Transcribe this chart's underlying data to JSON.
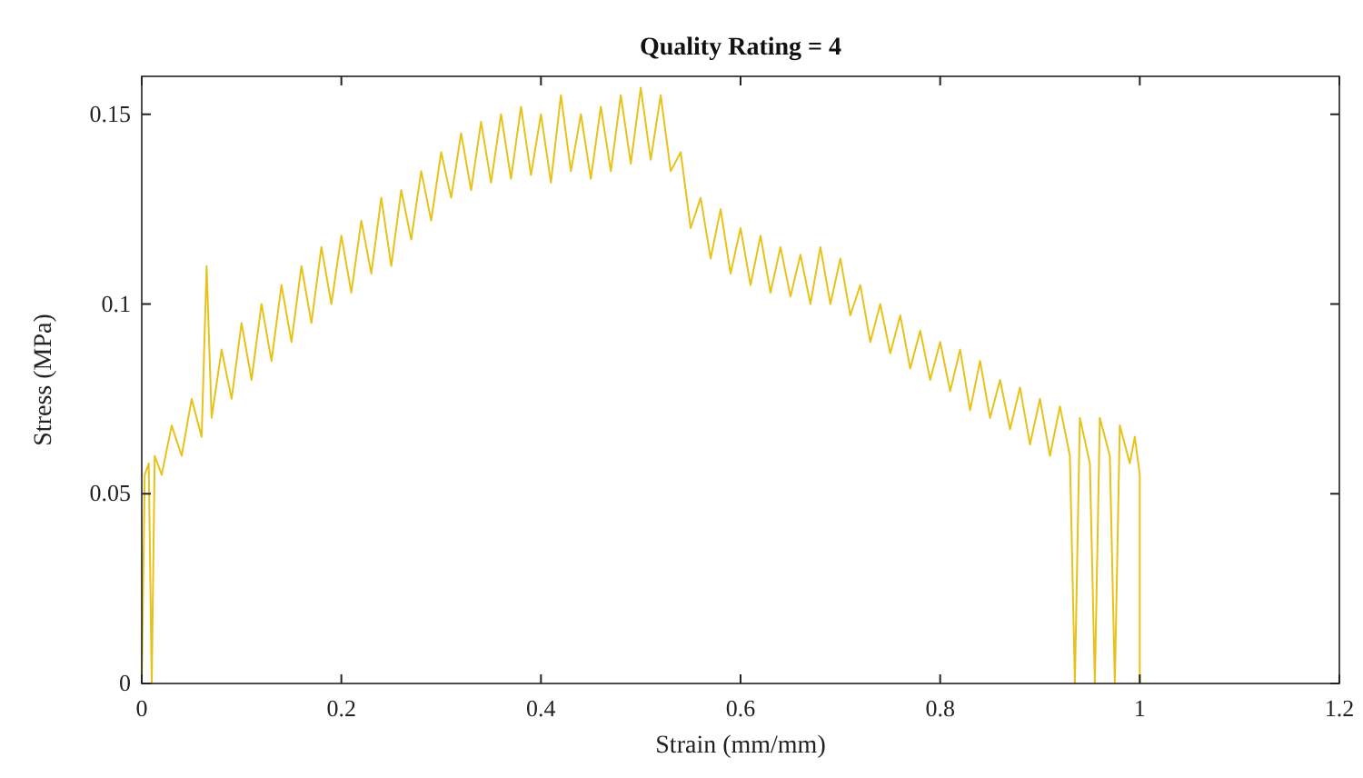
{
  "chart_data": {
    "type": "line",
    "title": "Quality Rating = 4",
    "xlabel": "Strain (mm/mm)",
    "ylabel": "Stress (MPa)",
    "xlim": [
      0,
      1.2
    ],
    "xticks": [
      0,
      0.2,
      0.4,
      0.6,
      0.8,
      1,
      1.2
    ],
    "ylim": [
      0,
      0.16
    ],
    "yticks": [
      0,
      0.05,
      0.1,
      0.15
    ],
    "grid": false,
    "marker": "none",
    "line_style": "solid",
    "series": [
      {
        "color": "#e8c21a",
        "x": [
          0,
          0.003,
          0.007,
          0.01,
          0.013,
          0.02,
          0.03,
          0.04,
          0.05,
          0.06,
          0.065,
          0.07,
          0.08,
          0.09,
          0.1,
          0.11,
          0.12,
          0.13,
          0.14,
          0.15,
          0.16,
          0.17,
          0.18,
          0.19,
          0.2,
          0.21,
          0.22,
          0.23,
          0.24,
          0.25,
          0.26,
          0.27,
          0.28,
          0.29,
          0.3,
          0.31,
          0.32,
          0.33,
          0.34,
          0.35,
          0.36,
          0.37,
          0.38,
          0.39,
          0.4,
          0.41,
          0.42,
          0.43,
          0.44,
          0.45,
          0.46,
          0.47,
          0.48,
          0.49,
          0.5,
          0.51,
          0.52,
          0.53,
          0.54,
          0.55,
          0.56,
          0.57,
          0.58,
          0.59,
          0.6,
          0.61,
          0.62,
          0.63,
          0.64,
          0.65,
          0.66,
          0.67,
          0.68,
          0.69,
          0.7,
          0.71,
          0.72,
          0.73,
          0.74,
          0.75,
          0.76,
          0.77,
          0.78,
          0.79,
          0.8,
          0.81,
          0.82,
          0.83,
          0.84,
          0.85,
          0.86,
          0.87,
          0.88,
          0.89,
          0.9,
          0.91,
          0.92,
          0.93,
          0.935,
          0.94,
          0.95,
          0.955,
          0.96,
          0.97,
          0.975,
          0.98,
          0.99,
          0.995,
          1,
          1
        ],
        "values": [
          0,
          0.055,
          0.058,
          0,
          0.06,
          0.055,
          0.068,
          0.06,
          0.075,
          0.065,
          0.11,
          0.07,
          0.088,
          0.075,
          0.095,
          0.08,
          0.1,
          0.085,
          0.105,
          0.09,
          0.11,
          0.095,
          0.115,
          0.1,
          0.118,
          0.103,
          0.122,
          0.108,
          0.128,
          0.11,
          0.13,
          0.117,
          0.135,
          0.122,
          0.14,
          0.128,
          0.145,
          0.13,
          0.148,
          0.132,
          0.15,
          0.133,
          0.152,
          0.134,
          0.15,
          0.132,
          0.155,
          0.135,
          0.15,
          0.133,
          0.152,
          0.135,
          0.155,
          0.137,
          0.157,
          0.138,
          0.155,
          0.135,
          0.14,
          0.12,
          0.128,
          0.112,
          0.125,
          0.108,
          0.12,
          0.105,
          0.118,
          0.103,
          0.115,
          0.102,
          0.113,
          0.1,
          0.115,
          0.1,
          0.112,
          0.097,
          0.105,
          0.09,
          0.1,
          0.087,
          0.097,
          0.083,
          0.093,
          0.08,
          0.09,
          0.077,
          0.088,
          0.072,
          0.085,
          0.07,
          0.08,
          0.067,
          0.078,
          0.063,
          0.075,
          0.06,
          0.073,
          0.06,
          0,
          0.07,
          0.058,
          0,
          0.07,
          0.06,
          0,
          0.068,
          0.058,
          0.065,
          0.055,
          0
        ]
      }
    ]
  }
}
